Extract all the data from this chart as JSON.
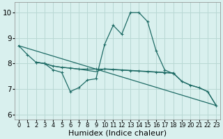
{
  "xlabel": "Humidex (Indice chaleur)",
  "xlim": [
    -0.5,
    23.5
  ],
  "ylim": [
    5.8,
    10.4
  ],
  "yticks": [
    6,
    7,
    8,
    9,
    10
  ],
  "xticks": [
    0,
    1,
    2,
    3,
    4,
    5,
    6,
    7,
    8,
    9,
    10,
    11,
    12,
    13,
    14,
    15,
    16,
    17,
    18,
    19,
    20,
    21,
    22,
    23
  ],
  "bg_color": "#d9f0ee",
  "line_color": "#1e6b65",
  "grid_color": "#b8d8d4",
  "line1_x": [
    0,
    1,
    2,
    3,
    4,
    5,
    6,
    7,
    8,
    9,
    10,
    11,
    12,
    13,
    14,
    15,
    16,
    17,
    18
  ],
  "line1_y": [
    8.7,
    8.35,
    8.05,
    8.0,
    7.75,
    7.65,
    6.9,
    7.05,
    7.35,
    7.4,
    8.75,
    9.5,
    9.15,
    10.0,
    10.0,
    9.65,
    8.5,
    7.75,
    7.6
  ],
  "line2_x": [
    2,
    3,
    4,
    5,
    6,
    7,
    8,
    9,
    10,
    11,
    12,
    13,
    14,
    15,
    16,
    17,
    18,
    19,
    20,
    21,
    22,
    23
  ],
  "line2_y": [
    8.05,
    8.0,
    7.9,
    7.85,
    7.82,
    7.78,
    7.78,
    7.78,
    7.78,
    7.76,
    7.74,
    7.72,
    7.7,
    7.68,
    7.66,
    7.64,
    7.62,
    7.3,
    7.15,
    7.05,
    6.9,
    6.35
  ],
  "line3_x": [
    2,
    3,
    4,
    5,
    6,
    7,
    8,
    9,
    10,
    11,
    12,
    13,
    14,
    15,
    16,
    17,
    18,
    19,
    20,
    21,
    22,
    23
  ],
  "line3_y": [
    8.05,
    8.0,
    7.9,
    7.85,
    7.82,
    7.78,
    7.73,
    7.68,
    7.79,
    7.77,
    7.75,
    7.73,
    7.71,
    7.69,
    7.67,
    7.65,
    7.63,
    7.3,
    7.15,
    7.05,
    6.9,
    6.35
  ],
  "line4_x": [
    0,
    23
  ],
  "line4_y": [
    8.7,
    6.35
  ],
  "font_size_xlabel": 8,
  "font_size_xtick": 6,
  "font_size_ytick": 7.5
}
